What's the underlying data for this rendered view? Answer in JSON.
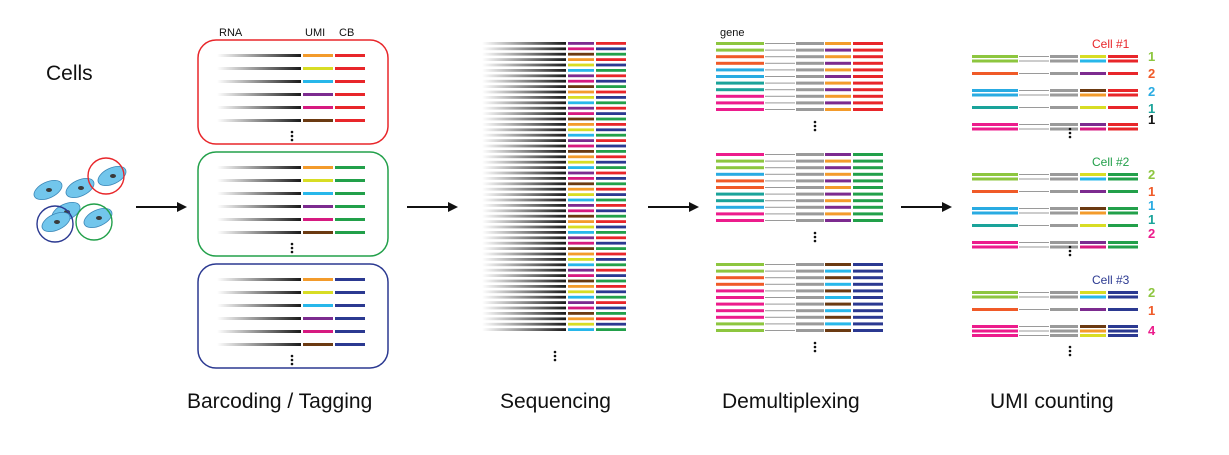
{
  "cells_label": "Cells",
  "stages": {
    "barcoding": "Barcoding / Tagging",
    "sequencing": "Sequencing",
    "demultiplexing": "Demultiplexing",
    "umi_counting": "UMI counting"
  },
  "column_headers": {
    "rna": "RNA",
    "umi": "UMI",
    "cb": "CB",
    "gene": "gene"
  },
  "colors": {
    "cell1": "#e8262a",
    "cell2": "#22a04a",
    "cell3": "#2b3991",
    "cell_fill": "#72c6ec",
    "umi_orange": "#f39b2b",
    "umi_yellow": "#d8dd24",
    "umi_cyan": "#27b7ea",
    "umi_purple": "#7c2b8f",
    "umi_brown": "#6b3a12",
    "umi_magenta": "#d61a80",
    "gene_green": "#8dc63f",
    "gene_orange": "#f05a28",
    "gene_blue": "#29abe2",
    "gene_teal": "#1aa39a",
    "gene_pink": "#ec1c8c",
    "grey": "#9a9a9a"
  },
  "umi_counts": [
    {
      "title": "Cell #1",
      "color": "#e8262a",
      "counts": [
        {
          "value": "1",
          "color": "#8dc63f"
        },
        {
          "value": "2",
          "color": "#f05a28"
        },
        {
          "value": "2",
          "color": "#29abe2"
        },
        {
          "value": "1",
          "color": "#1aa39a"
        },
        {
          "value": "1",
          "color": "#111111"
        }
      ]
    },
    {
      "title": "Cell #2",
      "color": "#22a04a",
      "counts": [
        {
          "value": "2",
          "color": "#8dc63f"
        },
        {
          "value": "1",
          "color": "#f05a28"
        },
        {
          "value": "1",
          "color": "#29abe2"
        },
        {
          "value": "1",
          "color": "#1aa39a"
        },
        {
          "value": "2",
          "color": "#ec1c8c"
        }
      ]
    },
    {
      "title": "Cell #3",
      "color": "#2b3991",
      "counts": [
        {
          "value": "2",
          "color": "#8dc63f"
        },
        {
          "value": "1",
          "color": "#f05a28"
        },
        {
          "value": "4",
          "color": "#ec1c8c"
        }
      ]
    }
  ],
  "continuation": "⋮"
}
